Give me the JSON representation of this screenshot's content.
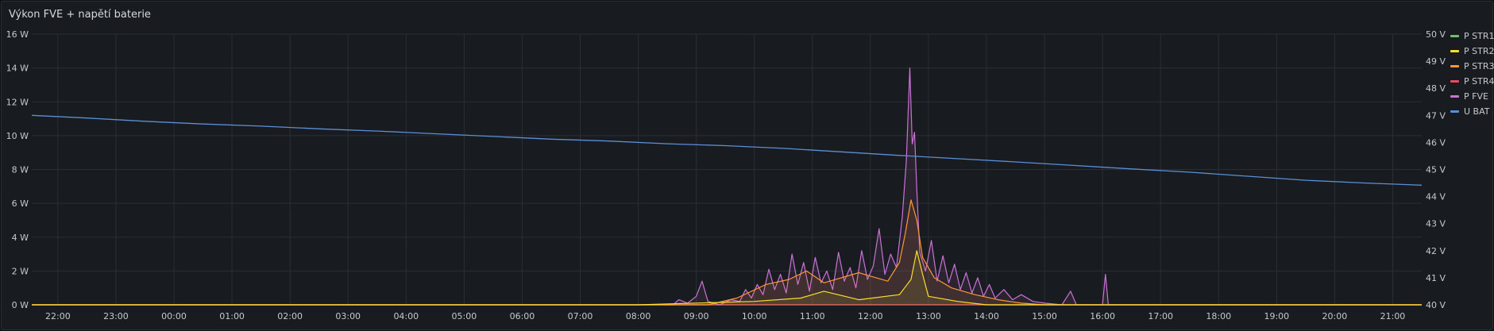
{
  "panel": {
    "title": "Výkon FVE + napětí baterie"
  },
  "chart_data": {
    "type": "line",
    "x_label": "",
    "x_ticks": [
      "22:00",
      "23:00",
      "00:00",
      "01:00",
      "02:00",
      "03:00",
      "04:00",
      "05:00",
      "06:00",
      "07:00",
      "08:00",
      "09:00",
      "10:00",
      "11:00",
      "12:00",
      "13:00",
      "14:00",
      "15:00",
      "16:00",
      "17:00",
      "18:00",
      "19:00",
      "20:00",
      "21:00"
    ],
    "x_range_hours": [
      21.55,
      45.5
    ],
    "y_left": {
      "unit": "W",
      "ticks": [
        "0 W",
        "2 W",
        "4 W",
        "6 W",
        "8 W",
        "10 W",
        "12 W",
        "14 W",
        "16 W"
      ],
      "range": [
        0,
        16
      ]
    },
    "y_right": {
      "unit": "V",
      "ticks": [
        "40 V",
        "41 V",
        "42 V",
        "43 V",
        "44 V",
        "45 V",
        "46 V",
        "47 V",
        "48 V",
        "49 V",
        "50 V"
      ],
      "range": [
        40,
        50
      ]
    },
    "grid": true,
    "legend_position": "right",
    "series": [
      {
        "name": "P STR1",
        "color": "#73bf69",
        "axis": "left",
        "points": [
          [
            21.55,
            0
          ],
          [
            45.5,
            0
          ]
        ]
      },
      {
        "name": "P STR2",
        "color": "#fade2a",
        "axis": "left",
        "points": [
          [
            21.55,
            0
          ],
          [
            32.0,
            0
          ],
          [
            34.0,
            0.2
          ],
          [
            34.8,
            0.4
          ],
          [
            35.2,
            0.8
          ],
          [
            35.8,
            0.3
          ],
          [
            36.5,
            0.6
          ],
          [
            36.7,
            1.5
          ],
          [
            36.8,
            3.2
          ],
          [
            36.9,
            1.8
          ],
          [
            37.0,
            0.5
          ],
          [
            37.5,
            0.2
          ],
          [
            38.0,
            0
          ],
          [
            45.5,
            0
          ]
        ]
      },
      {
        "name": "P STR3",
        "color": "#ff9830",
        "axis": "left",
        "points": [
          [
            21.55,
            0
          ],
          [
            33.2,
            0
          ],
          [
            33.7,
            0.4
          ],
          [
            34.2,
            1.2
          ],
          [
            34.6,
            1.5
          ],
          [
            34.9,
            2.0
          ],
          [
            35.2,
            1.3
          ],
          [
            35.5,
            1.6
          ],
          [
            35.8,
            1.9
          ],
          [
            36.0,
            1.7
          ],
          [
            36.3,
            1.4
          ],
          [
            36.5,
            2.5
          ],
          [
            36.6,
            4.2
          ],
          [
            36.7,
            6.2
          ],
          [
            36.8,
            5.0
          ],
          [
            36.9,
            2.8
          ],
          [
            37.1,
            1.6
          ],
          [
            37.4,
            1.0
          ],
          [
            37.8,
            0.6
          ],
          [
            38.2,
            0.3
          ],
          [
            38.6,
            0.1
          ],
          [
            39.0,
            0
          ],
          [
            45.5,
            0
          ]
        ]
      },
      {
        "name": "P STR4",
        "color": "#f2495c",
        "axis": "left",
        "points": [
          [
            21.55,
            0
          ],
          [
            45.5,
            0
          ]
        ]
      },
      {
        "name": "P FVE",
        "color": "#ca72d6",
        "axis": "left",
        "points": [
          [
            21.55,
            0
          ],
          [
            32.6,
            0
          ],
          [
            32.7,
            0.3
          ],
          [
            32.85,
            0.1
          ],
          [
            33.0,
            0.5
          ],
          [
            33.1,
            1.4
          ],
          [
            33.2,
            0.2
          ],
          [
            33.4,
            0
          ],
          [
            33.6,
            0.3
          ],
          [
            33.75,
            0.2
          ],
          [
            33.85,
            0.9
          ],
          [
            33.95,
            0.4
          ],
          [
            34.05,
            1.2
          ],
          [
            34.15,
            0.6
          ],
          [
            34.25,
            2.1
          ],
          [
            34.35,
            0.9
          ],
          [
            34.45,
            1.8
          ],
          [
            34.55,
            0.7
          ],
          [
            34.65,
            3.0
          ],
          [
            34.75,
            1.2
          ],
          [
            34.85,
            2.5
          ],
          [
            34.95,
            0.8
          ],
          [
            35.05,
            2.8
          ],
          [
            35.15,
            1.3
          ],
          [
            35.25,
            2.0
          ],
          [
            35.35,
            0.9
          ],
          [
            35.45,
            3.1
          ],
          [
            35.55,
            1.4
          ],
          [
            35.65,
            2.2
          ],
          [
            35.75,
            1.0
          ],
          [
            35.85,
            3.2
          ],
          [
            35.95,
            1.5
          ],
          [
            36.05,
            2.3
          ],
          [
            36.15,
            4.5
          ],
          [
            36.25,
            1.8
          ],
          [
            36.35,
            3.0
          ],
          [
            36.45,
            2.2
          ],
          [
            36.55,
            5.2
          ],
          [
            36.62,
            8.5
          ],
          [
            36.68,
            14.0
          ],
          [
            36.72,
            9.5
          ],
          [
            36.76,
            10.2
          ],
          [
            36.8,
            6.8
          ],
          [
            36.85,
            3.1
          ],
          [
            36.95,
            2.0
          ],
          [
            37.05,
            3.8
          ],
          [
            37.15,
            1.4
          ],
          [
            37.25,
            2.9
          ],
          [
            37.35,
            1.3
          ],
          [
            37.45,
            2.4
          ],
          [
            37.55,
            0.9
          ],
          [
            37.65,
            1.9
          ],
          [
            37.75,
            0.7
          ],
          [
            37.85,
            1.6
          ],
          [
            37.95,
            0.5
          ],
          [
            38.05,
            1.2
          ],
          [
            38.15,
            0.4
          ],
          [
            38.3,
            0.9
          ],
          [
            38.45,
            0.3
          ],
          [
            38.6,
            0.6
          ],
          [
            38.8,
            0.2
          ],
          [
            39.0,
            0.1
          ],
          [
            39.3,
            0
          ],
          [
            39.45,
            0.8
          ],
          [
            39.55,
            0
          ],
          [
            40.0,
            0
          ],
          [
            40.05,
            1.8
          ],
          [
            40.1,
            0
          ],
          [
            45.5,
            0
          ]
        ]
      },
      {
        "name": "U BAT",
        "color": "#5a8fd8",
        "axis": "right",
        "points": [
          [
            21.55,
            47.0
          ],
          [
            22.5,
            46.9
          ],
          [
            23.5,
            46.78
          ],
          [
            24.5,
            46.68
          ],
          [
            25.5,
            46.6
          ],
          [
            26.5,
            46.5
          ],
          [
            27.5,
            46.42
          ],
          [
            28.5,
            46.32
          ],
          [
            29.5,
            46.22
          ],
          [
            30.5,
            46.12
          ],
          [
            31.5,
            46.05
          ],
          [
            32.5,
            45.95
          ],
          [
            33.5,
            45.88
          ],
          [
            34.5,
            45.78
          ],
          [
            35.5,
            45.65
          ],
          [
            36.5,
            45.52
          ],
          [
            37.5,
            45.4
          ],
          [
            38.5,
            45.28
          ],
          [
            39.5,
            45.15
          ],
          [
            40.5,
            45.02
          ],
          [
            41.5,
            44.9
          ],
          [
            42.5,
            44.75
          ],
          [
            43.5,
            44.6
          ],
          [
            44.5,
            44.5
          ],
          [
            45.5,
            44.42
          ]
        ]
      }
    ]
  }
}
